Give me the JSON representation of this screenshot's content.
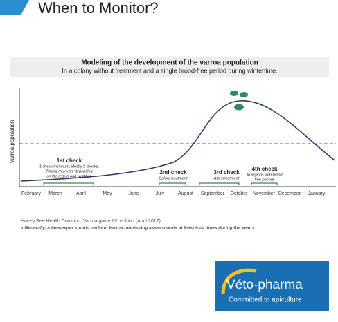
{
  "header": {
    "title": "When to Monitor?"
  },
  "chart": {
    "title": "Modeling of the development of the varroa population",
    "subtitle": "In a colony without treatment and a single brood-free period during wintertime.",
    "y_axis_label": "Varroa population",
    "months": [
      "February",
      "March",
      "April",
      "May",
      "June",
      "July",
      "August",
      "September",
      "October",
      "November",
      "December",
      "January"
    ],
    "checks": [
      {
        "title": "1st check",
        "lines": [
          "1 check minimum, ideally 2 checks.",
          "Timing may vary depending",
          "on the region and weather."
        ]
      },
      {
        "title": "2nd check",
        "lines": [
          "Before treatment"
        ]
      },
      {
        "title": "3rd check",
        "lines": [
          "After treatment"
        ]
      },
      {
        "title": "4th check",
        "lines": [
          "In regions with brood",
          "free periods"
        ]
      }
    ]
  },
  "source": {
    "citation": "Honey Bee Health Coalition, Varroa guide 6th edition (April 2017):",
    "quote": "« Generally, a beekeeper should perform Varroa monitoring assessments at least four times during the year »"
  },
  "logo": {
    "name": "Véto-pharma",
    "tagline": "Committed to apiculture"
  }
}
